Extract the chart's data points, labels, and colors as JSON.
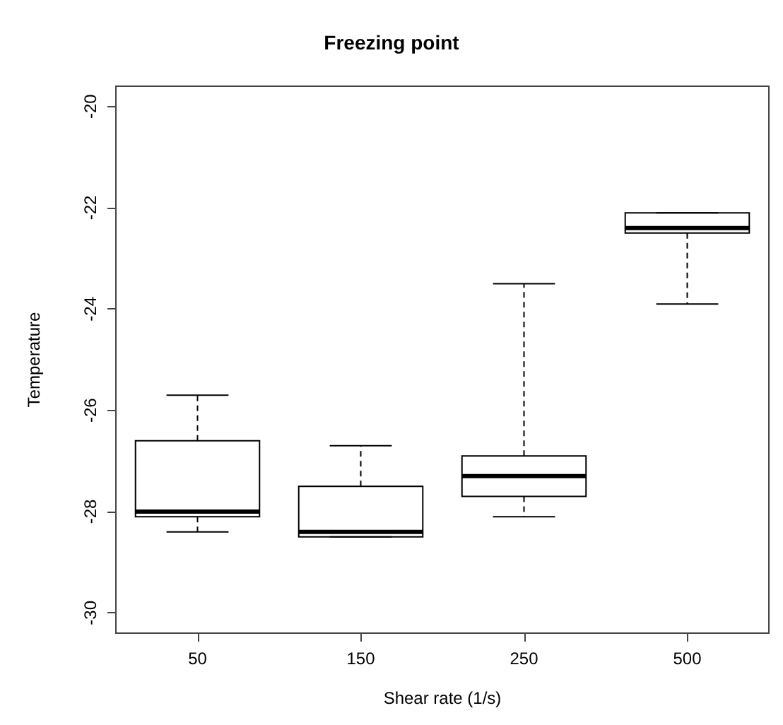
{
  "chart_data": {
    "type": "box",
    "title": "Freezing point",
    "xlabel": "Shear rate (1/s)",
    "ylabel": "Temperature",
    "categories": [
      "50",
      "150",
      "250",
      "500"
    ],
    "boxes": [
      {
        "low": -28.4,
        "q1": -28.1,
        "median": -28.0,
        "q3": -26.6,
        "high": -25.7
      },
      {
        "low": -28.5,
        "q1": -28.5,
        "median": -28.4,
        "q3": -27.5,
        "high": -26.7
      },
      {
        "low": -28.1,
        "q1": -27.7,
        "median": -27.3,
        "q3": -26.9,
        "high": -23.5
      },
      {
        "low": -23.9,
        "q1": -22.5,
        "median": -22.4,
        "q3": -22.1,
        "high": -22.1
      }
    ],
    "color": "#000000",
    "ylim": [
      -30.4,
      -19.6
    ],
    "yticks": [
      -30,
      -28,
      -26,
      -24,
      -22,
      -20
    ],
    "grid": false
  }
}
